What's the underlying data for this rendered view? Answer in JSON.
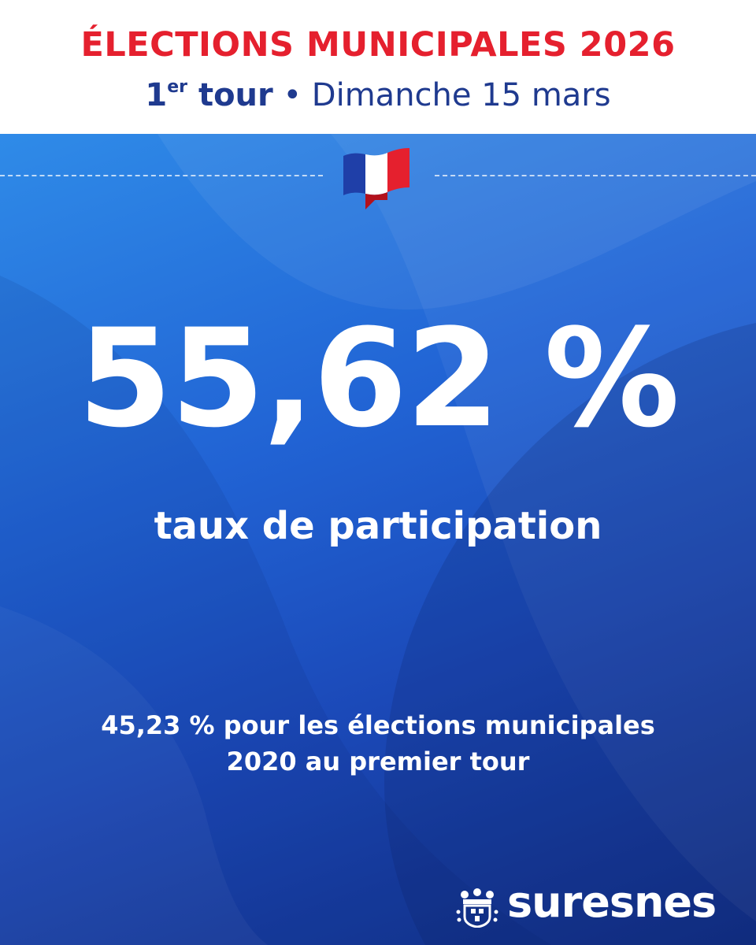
{
  "header": {
    "title": "ÉLECTIONS MUNICIPALES 2026",
    "round_number": "1",
    "round_suffix": "er",
    "round_word": "tour",
    "separator": "•",
    "date": "Dimanche 15 mars"
  },
  "main": {
    "participation_value": "55,62 %",
    "participation_label": "taux de participation",
    "comparison_line1": "45,23 % pour les élections municipales",
    "comparison_line2": "2020 au premier tour"
  },
  "logo": {
    "name": "suresnes",
    "crest_icon": "city-crest-icon"
  },
  "colors": {
    "title_red": "#e5202e",
    "subtitle_blue": "#1f3a8f",
    "flag_blue": "#1f3fa8",
    "flag_red": "#e5202e"
  },
  "icons": {
    "flag": "french-flag-banner-icon"
  }
}
